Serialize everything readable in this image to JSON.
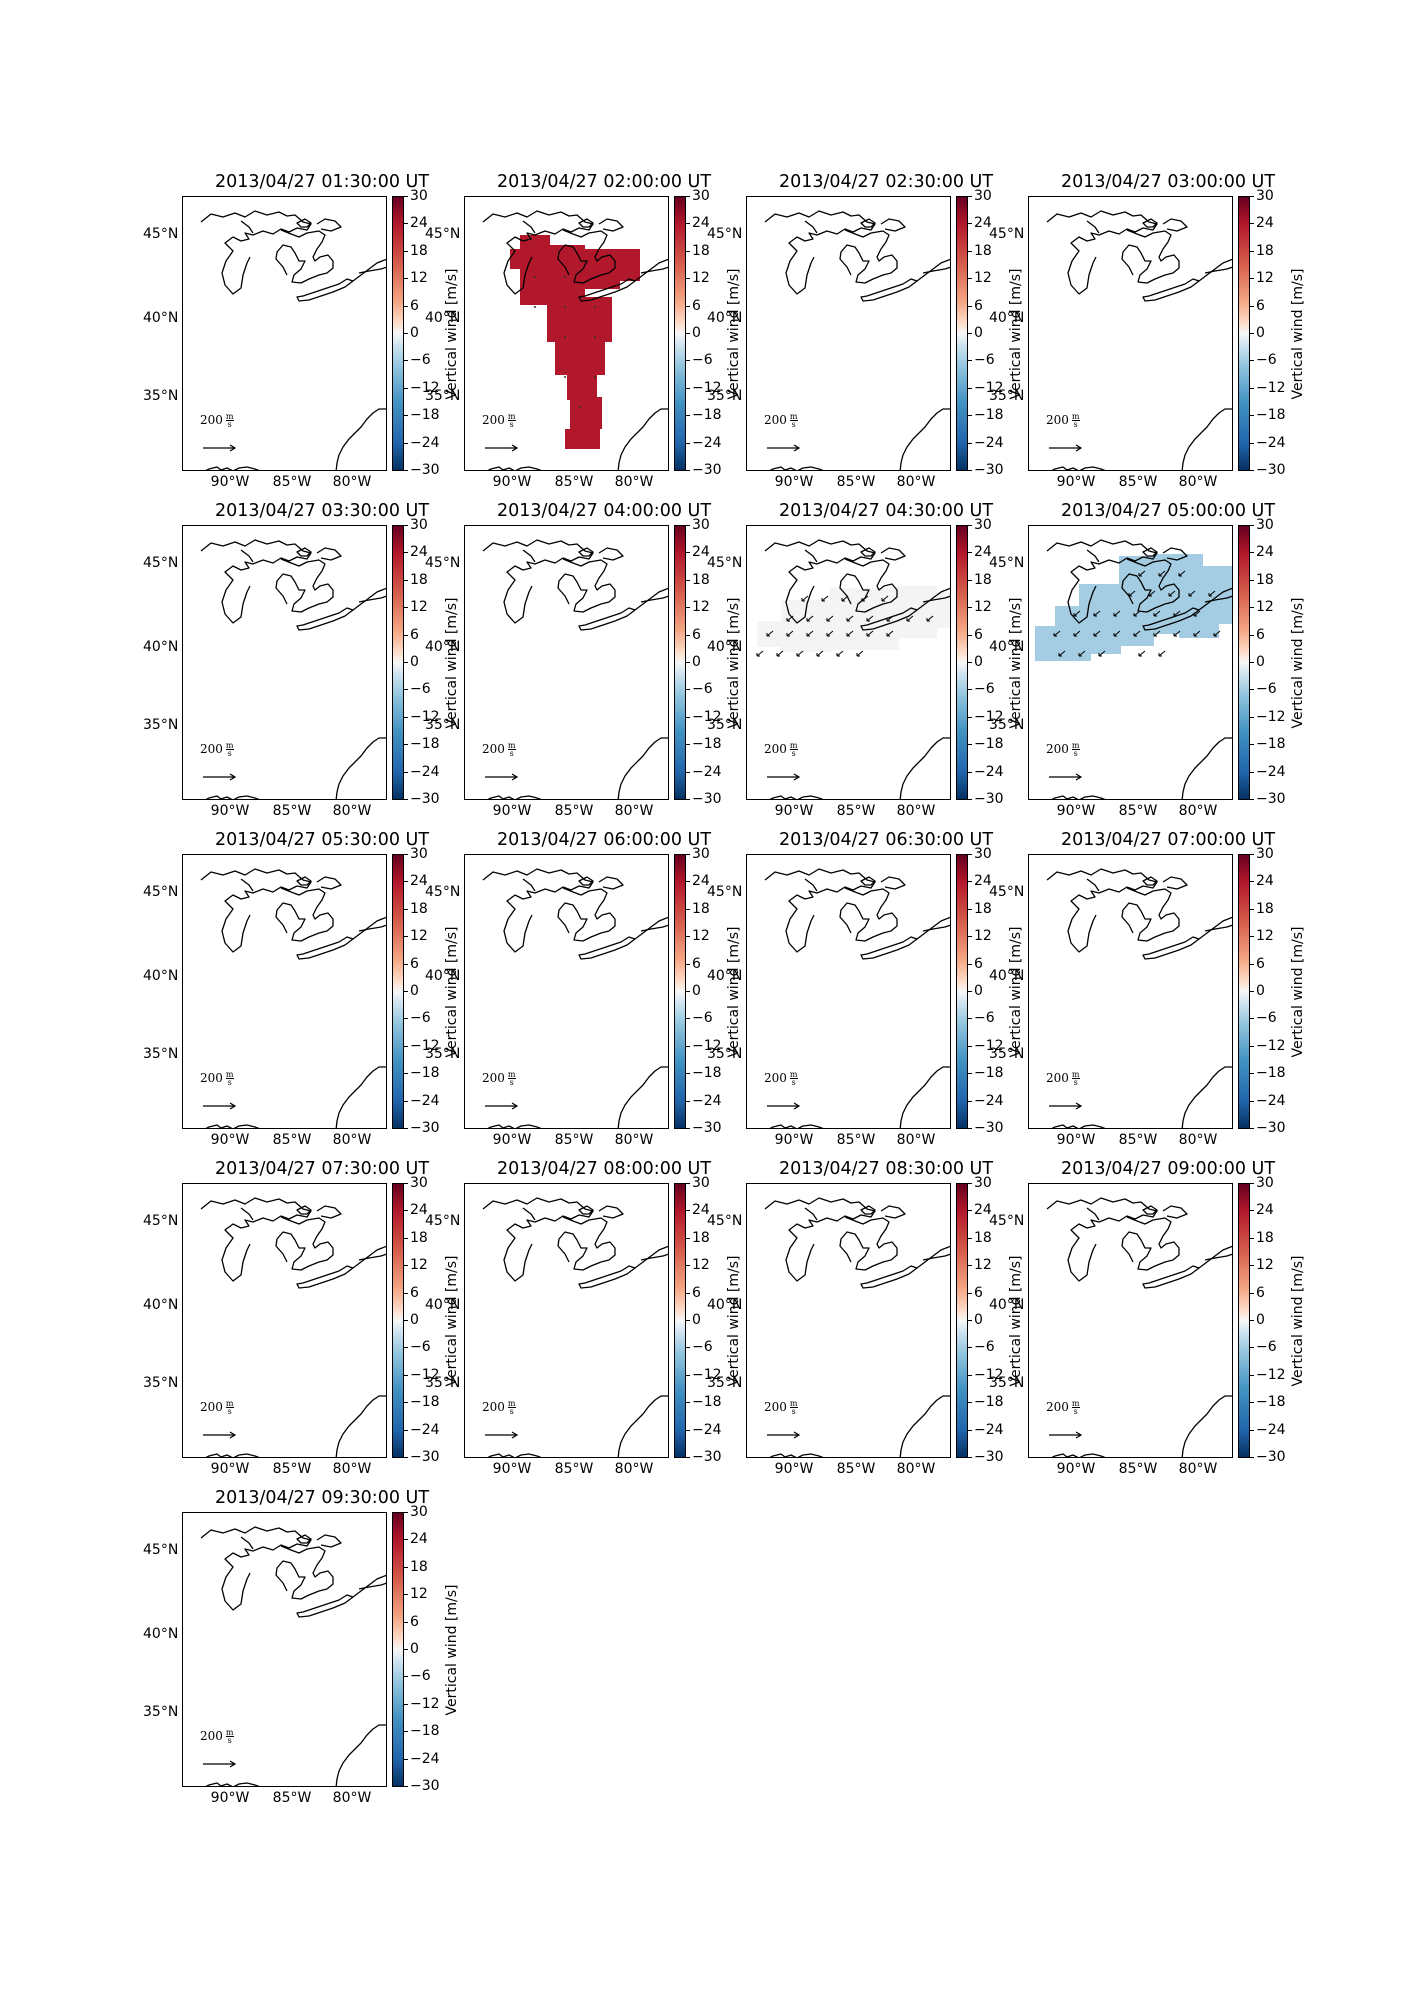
{
  "panels": [
    {
      "title": "2013/04/27 01:30:00 UT",
      "field": "none"
    },
    {
      "title": "2013/04/27 02:00:00 UT",
      "field": "red"
    },
    {
      "title": "2013/04/27 02:30:00 UT",
      "field": "none"
    },
    {
      "title": "2013/04/27 03:00:00 UT",
      "field": "none"
    },
    {
      "title": "2013/04/27 03:30:00 UT",
      "field": "none"
    },
    {
      "title": "2013/04/27 04:00:00 UT",
      "field": "none"
    },
    {
      "title": "2013/04/27 04:30:00 UT",
      "field": "faint"
    },
    {
      "title": "2013/04/27 05:00:00 UT",
      "field": "blue"
    },
    {
      "title": "2013/04/27 05:30:00 UT",
      "field": "none"
    },
    {
      "title": "2013/04/27 06:00:00 UT",
      "field": "none"
    },
    {
      "title": "2013/04/27 06:30:00 UT",
      "field": "none"
    },
    {
      "title": "2013/04/27 07:00:00 UT",
      "field": "none"
    },
    {
      "title": "2013/04/27 07:30:00 UT",
      "field": "none"
    },
    {
      "title": "2013/04/27 08:00:00 UT",
      "field": "none"
    },
    {
      "title": "2013/04/27 08:30:00 UT",
      "field": "none"
    },
    {
      "title": "2013/04/27 09:00:00 UT",
      "field": "none"
    },
    {
      "title": "2013/04/27 09:30:00 UT",
      "field": "none"
    }
  ],
  "colorbar": {
    "label": "Vertical wind [m/s]",
    "ticks": [
      "30",
      "24",
      "18",
      "12",
      "6",
      "0",
      "−6",
      "−12",
      "−18",
      "−24",
      "−30"
    ],
    "range": [
      -30,
      30
    ],
    "colormap": "RdBu_r"
  },
  "lat_ticks": [
    "45°N",
    "40°N",
    "35°N"
  ],
  "lon_ticks": [
    "90°W",
    "85°W",
    "80°W"
  ],
  "quiver_key": {
    "value": "200",
    "unit_num": "m",
    "unit_den": "s"
  },
  "field_colors": {
    "red": "#b2182b",
    "faint": "#f4f4f4",
    "blue": "#a4cde3"
  },
  "coast_color": "#000000"
}
